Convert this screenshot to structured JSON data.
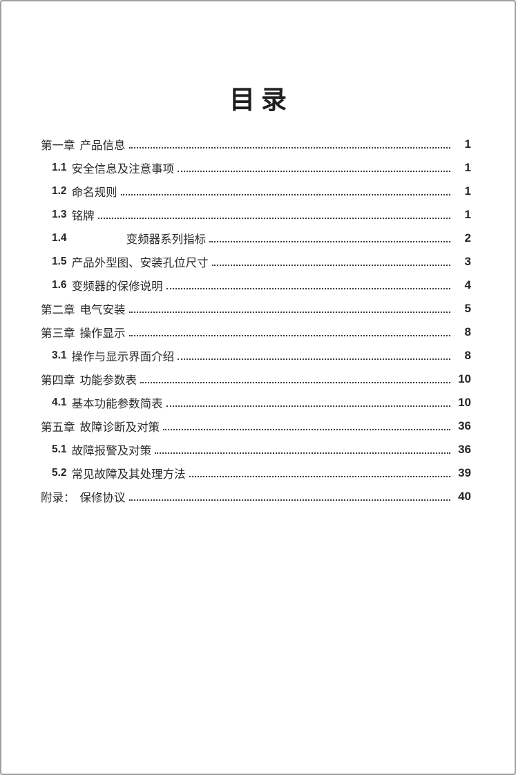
{
  "page": {
    "title": "目录"
  },
  "toc": {
    "entries": [
      {
        "num": "第一章",
        "text": "产品信息",
        "page": "1",
        "level": 0,
        "wide_gap": false
      },
      {
        "num": "1.1",
        "text": "安全信息及注意事项",
        "page": "1",
        "level": 1,
        "wide_gap": false
      },
      {
        "num": "1.2",
        "text": "命名规则",
        "page": "1",
        "level": 1,
        "wide_gap": false
      },
      {
        "num": "1.3",
        "text": "铭牌",
        "page": "1",
        "level": 1,
        "wide_gap": false
      },
      {
        "num": "1.4",
        "text": "变频器系列指标",
        "page": "2",
        "level": 1,
        "wide_gap": true
      },
      {
        "num": "1.5",
        "text": "产品外型图、安装孔位尺寸",
        "page": "3",
        "level": 1,
        "wide_gap": false
      },
      {
        "num": "1.6",
        "text": "变频器的保修说明",
        "page": "4",
        "level": 1,
        "wide_gap": false
      },
      {
        "num": "第二章",
        "text": "电气安装",
        "page": "5",
        "level": 0,
        "wide_gap": false
      },
      {
        "num": "第三章",
        "text": "操作显示",
        "page": "8",
        "level": 0,
        "wide_gap": false
      },
      {
        "num": "3.1",
        "text": "操作与显示界面介绍",
        "page": "8",
        "level": 1,
        "wide_gap": false
      },
      {
        "num": "第四章",
        "text": "功能参数表",
        "page": "10",
        "level": 0,
        "wide_gap": false
      },
      {
        "num": "4.1",
        "text": "基本功能参数简表",
        "page": "10",
        "level": 1,
        "wide_gap": false
      },
      {
        "num": "第五章",
        "text": "故障诊断及对策",
        "page": "36",
        "level": 0,
        "wide_gap": false
      },
      {
        "num": "5.1",
        "text": "故障报警及对策",
        "page": "36",
        "level": 1,
        "wide_gap": false
      },
      {
        "num": "5.2",
        "text": "常见故障及其处理方法",
        "page": "39",
        "level": 1,
        "wide_gap": false
      },
      {
        "num": "附录：",
        "text": "保修协议",
        "page": "40",
        "level": 0,
        "wide_gap": false
      }
    ]
  }
}
